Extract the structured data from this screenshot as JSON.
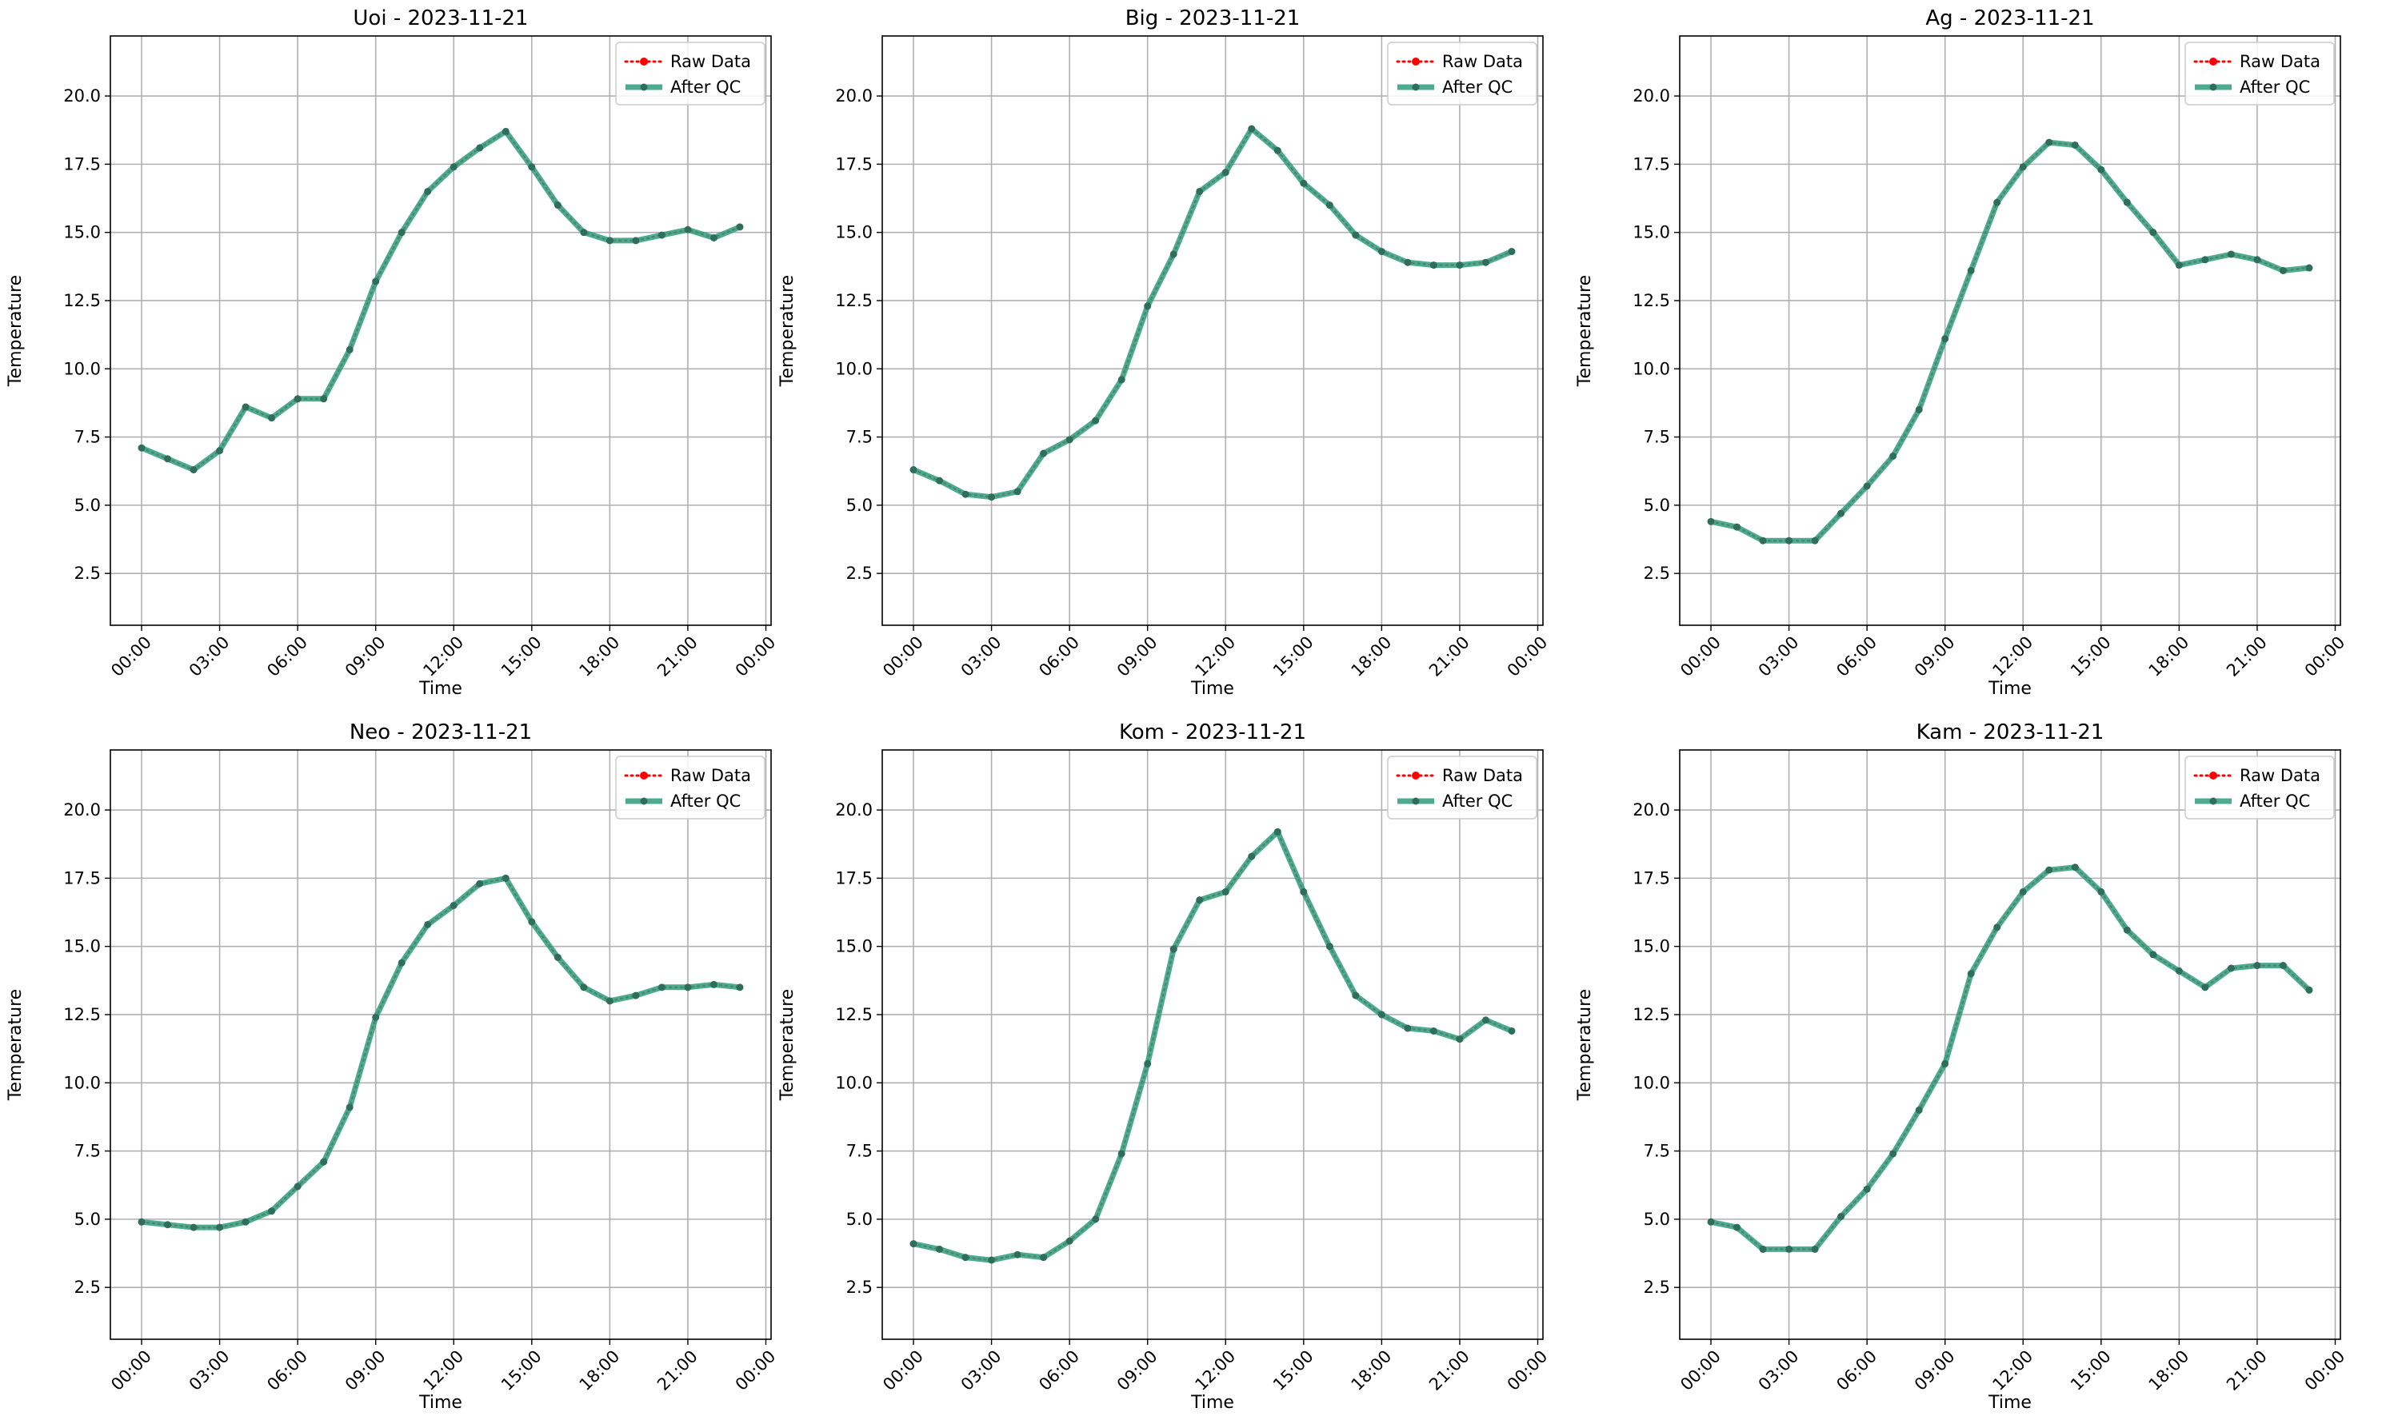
{
  "colors": {
    "raw": "#ff0000",
    "qc": "#2e9e7d",
    "grid": "#b0b0b0",
    "axis": "#000000",
    "legend_border": "#cccccc"
  },
  "chart_data": [
    {
      "type": "line",
      "title": "Uoi - 2023-11-21",
      "xlabel": "Time",
      "ylabel": "Temperature",
      "xlim_hours": [
        -1.2,
        24.2
      ],
      "ylim": [
        0.6,
        22.2
      ],
      "x_ticks": [
        "00:00",
        "03:00",
        "06:00",
        "09:00",
        "12:00",
        "15:00",
        "18:00",
        "21:00",
        "00:00"
      ],
      "y_ticks": [
        "2.5",
        "5.0",
        "7.5",
        "10.0",
        "12.5",
        "15.0",
        "17.5",
        "20.0"
      ],
      "grid": true,
      "legend": {
        "position": "top-right",
        "entries": [
          "Raw Data",
          "After QC"
        ]
      },
      "x_hours": [
        0,
        1,
        2,
        3,
        4,
        5,
        6,
        7,
        8,
        9,
        10,
        11,
        12,
        13,
        14,
        15,
        16,
        17,
        18,
        19,
        20,
        21,
        22,
        23
      ],
      "series": [
        {
          "name": "Raw Data",
          "style": "dotted-markers",
          "values": [
            7.1,
            6.7,
            6.3,
            7.0,
            8.6,
            8.2,
            8.9,
            8.9,
            10.7,
            13.2,
            15.0,
            16.5,
            17.4,
            18.1,
            18.7,
            17.4,
            16.0,
            15.0,
            14.7,
            14.7,
            14.9,
            15.1,
            14.8,
            15.2
          ]
        },
        {
          "name": "After QC",
          "style": "solid-thick",
          "values": [
            7.1,
            6.7,
            6.3,
            7.0,
            8.6,
            8.2,
            8.9,
            8.9,
            10.7,
            13.2,
            15.0,
            16.5,
            17.4,
            18.1,
            18.7,
            17.4,
            16.0,
            15.0,
            14.7,
            14.7,
            14.9,
            15.1,
            14.8,
            15.2
          ]
        }
      ]
    },
    {
      "type": "line",
      "title": "Big - 2023-11-21",
      "xlabel": "Time",
      "ylabel": "Temperature",
      "xlim_hours": [
        -1.2,
        24.2
      ],
      "ylim": [
        0.6,
        22.2
      ],
      "x_ticks": [
        "00:00",
        "03:00",
        "06:00",
        "09:00",
        "12:00",
        "15:00",
        "18:00",
        "21:00",
        "00:00"
      ],
      "y_ticks": [
        "2.5",
        "5.0",
        "7.5",
        "10.0",
        "12.5",
        "15.0",
        "17.5",
        "20.0"
      ],
      "grid": true,
      "legend": {
        "position": "top-right",
        "entries": [
          "Raw Data",
          "After QC"
        ]
      },
      "x_hours": [
        0,
        1,
        2,
        3,
        4,
        5,
        6,
        7,
        8,
        9,
        10,
        11,
        12,
        13,
        14,
        15,
        16,
        17,
        18,
        19,
        20,
        21,
        22,
        23
      ],
      "series": [
        {
          "name": "Raw Data",
          "style": "dotted-markers",
          "values": [
            6.3,
            5.9,
            5.4,
            5.3,
            5.5,
            6.9,
            7.4,
            8.1,
            9.6,
            12.3,
            14.2,
            16.5,
            17.2,
            18.8,
            18.0,
            16.8,
            16.0,
            14.9,
            14.3,
            13.9,
            13.8,
            13.8,
            13.9,
            14.3
          ]
        },
        {
          "name": "After QC",
          "style": "solid-thick",
          "values": [
            6.3,
            5.9,
            5.4,
            5.3,
            5.5,
            6.9,
            7.4,
            8.1,
            9.6,
            12.3,
            14.2,
            16.5,
            17.2,
            18.8,
            18.0,
            16.8,
            16.0,
            14.9,
            14.3,
            13.9,
            13.8,
            13.8,
            13.9,
            14.3
          ]
        }
      ]
    },
    {
      "type": "line",
      "title": "Ag - 2023-11-21",
      "xlabel": "Time",
      "ylabel": "Temperature",
      "xlim_hours": [
        -1.2,
        24.2
      ],
      "ylim": [
        0.6,
        22.2
      ],
      "x_ticks": [
        "00:00",
        "03:00",
        "06:00",
        "09:00",
        "12:00",
        "15:00",
        "18:00",
        "21:00",
        "00:00"
      ],
      "y_ticks": [
        "2.5",
        "5.0",
        "7.5",
        "10.0",
        "12.5",
        "15.0",
        "17.5",
        "20.0"
      ],
      "grid": true,
      "legend": {
        "position": "top-right",
        "entries": [
          "Raw Data",
          "After QC"
        ]
      },
      "x_hours": [
        0,
        1,
        2,
        3,
        4,
        5,
        6,
        7,
        8,
        9,
        10,
        11,
        12,
        13,
        14,
        15,
        16,
        17,
        18,
        19,
        20,
        21,
        22,
        23
      ],
      "series": [
        {
          "name": "Raw Data",
          "style": "dotted-markers",
          "values": [
            4.4,
            4.2,
            3.7,
            3.7,
            3.7,
            4.7,
            5.7,
            6.8,
            8.5,
            11.1,
            13.6,
            16.1,
            17.4,
            18.3,
            18.2,
            17.3,
            16.1,
            15.0,
            13.8,
            14.0,
            14.2,
            14.0,
            13.6,
            13.7
          ]
        },
        {
          "name": "After QC",
          "style": "solid-thick",
          "values": [
            4.4,
            4.2,
            3.7,
            3.7,
            3.7,
            4.7,
            5.7,
            6.8,
            8.5,
            11.1,
            13.6,
            16.1,
            17.4,
            18.3,
            18.2,
            17.3,
            16.1,
            15.0,
            13.8,
            14.0,
            14.2,
            14.0,
            13.6,
            13.7
          ]
        }
      ]
    },
    {
      "type": "line",
      "title": "Neo - 2023-11-21",
      "xlabel": "Time",
      "ylabel": "Temperature",
      "xlim_hours": [
        -1.2,
        24.2
      ],
      "ylim": [
        0.6,
        22.2
      ],
      "x_ticks": [
        "00:00",
        "03:00",
        "06:00",
        "09:00",
        "12:00",
        "15:00",
        "18:00",
        "21:00",
        "00:00"
      ],
      "y_ticks": [
        "2.5",
        "5.0",
        "7.5",
        "10.0",
        "12.5",
        "15.0",
        "17.5",
        "20.0"
      ],
      "grid": true,
      "legend": {
        "position": "top-right",
        "entries": [
          "Raw Data",
          "After QC"
        ]
      },
      "x_hours": [
        0,
        1,
        2,
        3,
        4,
        5,
        6,
        7,
        8,
        9,
        10,
        11,
        12,
        13,
        14,
        15,
        16,
        17,
        18,
        19,
        20,
        21,
        22,
        23
      ],
      "series": [
        {
          "name": "Raw Data",
          "style": "dotted-markers",
          "values": [
            4.9,
            4.8,
            4.7,
            4.7,
            4.9,
            5.3,
            6.2,
            7.1,
            9.1,
            12.4,
            14.4,
            15.8,
            16.5,
            17.3,
            17.5,
            15.9,
            14.6,
            13.5,
            13.0,
            13.2,
            13.5,
            13.5,
            13.6,
            13.5
          ]
        },
        {
          "name": "After QC",
          "style": "solid-thick",
          "values": [
            4.9,
            4.8,
            4.7,
            4.7,
            4.9,
            5.3,
            6.2,
            7.1,
            9.1,
            12.4,
            14.4,
            15.8,
            16.5,
            17.3,
            17.5,
            15.9,
            14.6,
            13.5,
            13.0,
            13.2,
            13.5,
            13.5,
            13.6,
            13.5
          ]
        }
      ]
    },
    {
      "type": "line",
      "title": "Kom - 2023-11-21",
      "xlabel": "Time",
      "ylabel": "Temperature",
      "xlim_hours": [
        -1.2,
        24.2
      ],
      "ylim": [
        0.6,
        22.2
      ],
      "x_ticks": [
        "00:00",
        "03:00",
        "06:00",
        "09:00",
        "12:00",
        "15:00",
        "18:00",
        "21:00",
        "00:00"
      ],
      "y_ticks": [
        "2.5",
        "5.0",
        "7.5",
        "10.0",
        "12.5",
        "15.0",
        "17.5",
        "20.0"
      ],
      "grid": true,
      "legend": {
        "position": "top-right",
        "entries": [
          "Raw Data",
          "After QC"
        ]
      },
      "x_hours": [
        0,
        1,
        2,
        3,
        4,
        5,
        6,
        7,
        8,
        9,
        10,
        11,
        12,
        13,
        14,
        15,
        16,
        17,
        18,
        19,
        20,
        21,
        22,
        23
      ],
      "series": [
        {
          "name": "Raw Data",
          "style": "dotted-markers",
          "values": [
            4.1,
            3.9,
            3.6,
            3.5,
            3.7,
            3.6,
            4.2,
            5.0,
            7.4,
            10.7,
            14.9,
            16.7,
            17.0,
            18.3,
            19.2,
            17.0,
            15.0,
            13.2,
            12.5,
            12.0,
            11.9,
            11.6,
            12.3,
            11.9
          ]
        },
        {
          "name": "After QC",
          "style": "solid-thick",
          "values": [
            4.1,
            3.9,
            3.6,
            3.5,
            3.7,
            3.6,
            4.2,
            5.0,
            7.4,
            10.7,
            14.9,
            16.7,
            17.0,
            18.3,
            19.2,
            17.0,
            15.0,
            13.2,
            12.5,
            12.0,
            11.9,
            11.6,
            12.3,
            11.9
          ]
        }
      ]
    },
    {
      "type": "line",
      "title": "Kam - 2023-11-21",
      "xlabel": "Time",
      "ylabel": "Temperature",
      "xlim_hours": [
        -1.2,
        24.2
      ],
      "ylim": [
        0.6,
        22.2
      ],
      "x_ticks": [
        "00:00",
        "03:00",
        "06:00",
        "09:00",
        "12:00",
        "15:00",
        "18:00",
        "21:00",
        "00:00"
      ],
      "y_ticks": [
        "2.5",
        "5.0",
        "7.5",
        "10.0",
        "12.5",
        "15.0",
        "17.5",
        "20.0"
      ],
      "grid": true,
      "legend": {
        "position": "top-right",
        "entries": [
          "Raw Data",
          "After QC"
        ]
      },
      "x_hours": [
        0,
        1,
        2,
        3,
        4,
        5,
        6,
        7,
        8,
        9,
        10,
        11,
        12,
        13,
        14,
        15,
        16,
        17,
        18,
        19,
        20,
        21,
        22,
        23
      ],
      "series": [
        {
          "name": "Raw Data",
          "style": "dotted-markers",
          "values": [
            4.9,
            4.7,
            3.9,
            3.9,
            3.9,
            5.1,
            6.1,
            7.4,
            9.0,
            10.7,
            14.0,
            15.7,
            17.0,
            17.8,
            17.9,
            17.0,
            15.6,
            14.7,
            14.1,
            13.5,
            14.2,
            14.3,
            14.3,
            13.4
          ]
        },
        {
          "name": "After QC",
          "style": "solid-thick",
          "values": [
            4.9,
            4.7,
            3.9,
            3.9,
            3.9,
            5.1,
            6.1,
            7.4,
            9.0,
            10.7,
            14.0,
            15.7,
            17.0,
            17.8,
            17.9,
            17.0,
            15.6,
            14.7,
            14.1,
            13.5,
            14.2,
            14.3,
            14.3,
            13.4
          ]
        }
      ]
    }
  ]
}
